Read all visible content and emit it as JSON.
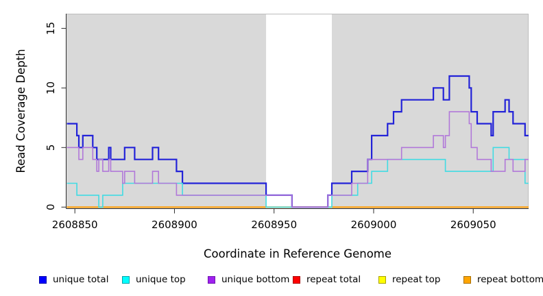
{
  "chart_data": {
    "type": "line",
    "subtype": "step",
    "title": "",
    "xlabel": "Coordinate in Reference Genome",
    "ylabel": "Read Coverage Depth",
    "x_ticks": [
      "2608850",
      "2608900",
      "2608950",
      "2609000",
      "2609050"
    ],
    "y_ticks": [
      "0",
      "5",
      "10",
      "15"
    ],
    "xlim": [
      2608845.8,
      2609077.8
    ],
    "ylim": [
      -0.1,
      16.23
    ],
    "x_tick_values": [
      2608850,
      2608900,
      2608950,
      2609000,
      2609050
    ],
    "y_tick_values": [
      0,
      5,
      10,
      15
    ],
    "x_end": 2609077.8,
    "plot_background": "#d9d9d9",
    "plot_edge_color": "#bcbcbc",
    "axis_color": "#2b2b2b",
    "unshaded_band": [
      2608946,
      2608979
    ],
    "legend_position": "bottom",
    "grid": false,
    "series": [
      {
        "name": "repeat total",
        "line_color": "#e60000",
        "line_width": 1.6,
        "steps": [
          [
            2608846,
            0
          ]
        ]
      },
      {
        "name": "repeat top",
        "line_color": "#f2f200",
        "line_width": 1.6,
        "steps": [
          [
            2608846,
            0
          ]
        ]
      },
      {
        "name": "repeat bottom",
        "line_color": "#ff9f0a",
        "line_width": 2,
        "steps": [
          [
            2608846,
            0
          ]
        ]
      },
      {
        "name": "unique total",
        "line_color": "#2222d8",
        "line_width": 2.2,
        "steps": [
          [
            2608846,
            7
          ],
          [
            2608851,
            6
          ],
          [
            2608852,
            5
          ],
          [
            2608854,
            6
          ],
          [
            2608859,
            5
          ],
          [
            2608861,
            4
          ],
          [
            2608867,
            5
          ],
          [
            2608868,
            4
          ],
          [
            2608875,
            5
          ],
          [
            2608880,
            4
          ],
          [
            2608889,
            5
          ],
          [
            2608892,
            4
          ],
          [
            2608901,
            3
          ],
          [
            2608904,
            2
          ],
          [
            2608946,
            1
          ],
          [
            2608959,
            0
          ],
          [
            2608977,
            1
          ],
          [
            2608979,
            2
          ],
          [
            2608989,
            3
          ],
          [
            2608997,
            4
          ],
          [
            2608999,
            6
          ],
          [
            2609007,
            7
          ],
          [
            2609010,
            8
          ],
          [
            2609014,
            9
          ],
          [
            2609030,
            10
          ],
          [
            2609035,
            9
          ],
          [
            2609038,
            11
          ],
          [
            2609048,
            10
          ],
          [
            2609049,
            8
          ],
          [
            2609052,
            7
          ],
          [
            2609059,
            6
          ],
          [
            2609060,
            8
          ],
          [
            2609066,
            9
          ],
          [
            2609068,
            8
          ],
          [
            2609070,
            7
          ],
          [
            2609076,
            6
          ]
        ]
      },
      {
        "name": "unique top",
        "line_color": "#41dbe3",
        "line_width": 1.6,
        "steps": [
          [
            2608846,
            2
          ],
          [
            2608851,
            1
          ],
          [
            2608862,
            0
          ],
          [
            2608864,
            1
          ],
          [
            2608874,
            2
          ],
          [
            2608904,
            1
          ],
          [
            2608946,
            0
          ],
          [
            2608979,
            1
          ],
          [
            2608992,
            2
          ],
          [
            2608999,
            3
          ],
          [
            2609007,
            4
          ],
          [
            2609036,
            3
          ],
          [
            2609060,
            5
          ],
          [
            2609068,
            4
          ],
          [
            2609076,
            2
          ]
        ]
      },
      {
        "name": "unique bottom",
        "line_color": "#b178d9",
        "line_width": 1.6,
        "steps": [
          [
            2608846,
            5
          ],
          [
            2608852,
            4
          ],
          [
            2608854,
            5
          ],
          [
            2608859,
            4
          ],
          [
            2608861,
            3
          ],
          [
            2608862,
            4
          ],
          [
            2608864,
            3
          ],
          [
            2608867,
            4
          ],
          [
            2608868,
            3
          ],
          [
            2608874,
            2
          ],
          [
            2608875,
            3
          ],
          [
            2608880,
            2
          ],
          [
            2608889,
            3
          ],
          [
            2608892,
            2
          ],
          [
            2608901,
            1
          ],
          [
            2608959,
            0
          ],
          [
            2608977,
            1
          ],
          [
            2608989,
            2
          ],
          [
            2608997,
            4
          ],
          [
            2609014,
            5
          ],
          [
            2609030,
            6
          ],
          [
            2609035,
            5
          ],
          [
            2609036,
            6
          ],
          [
            2609038,
            8
          ],
          [
            2609048,
            7
          ],
          [
            2609049,
            5
          ],
          [
            2609052,
            4
          ],
          [
            2609059,
            3
          ],
          [
            2609066,
            4
          ],
          [
            2609070,
            3
          ],
          [
            2609076,
            4
          ]
        ]
      }
    ]
  },
  "legend": {
    "items": [
      {
        "label": "unique total",
        "fill": "#0000ff",
        "border": "#0000a8"
      },
      {
        "label": "unique top",
        "fill": "#00ffff",
        "border": "#00a0a8"
      },
      {
        "label": "unique bottom",
        "fill": "#a020f0",
        "border": "#6e14ae"
      },
      {
        "label": "repeat total",
        "fill": "#ff0000",
        "border": "#a80000"
      },
      {
        "label": "repeat top",
        "fill": "#ffff00",
        "border": "#a8a000"
      },
      {
        "label": "repeat bottom",
        "fill": "#ffa500",
        "border": "#a86e00"
      }
    ]
  }
}
